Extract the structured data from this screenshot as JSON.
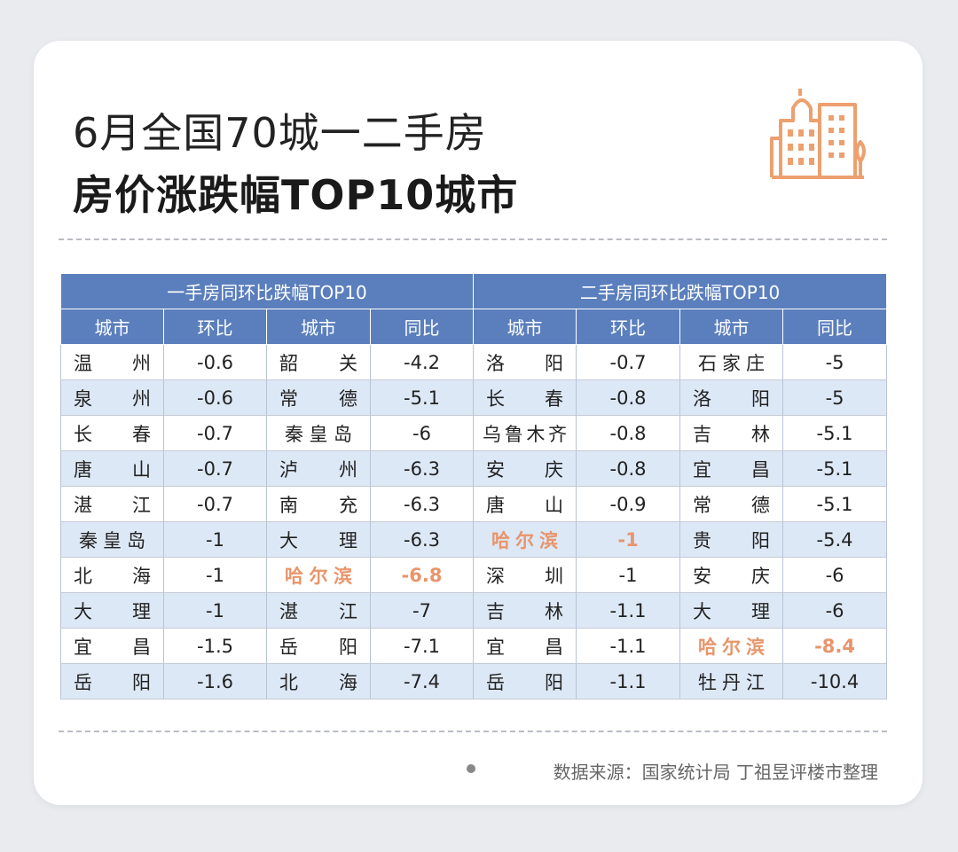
{
  "title_line1": "6月全国70城一二手房",
  "title_line2": "房价涨跌幅TOP10城市",
  "logo_icon": "buildings-icon",
  "accent_color": "#e8956b",
  "header_color": "#5b7fbd",
  "group_headers": [
    "一手房同环比跌幅TOP10",
    "二手房同环比跌幅TOP10"
  ],
  "column_headers": [
    "城市",
    "环比",
    "城市",
    "同比",
    "城市",
    "环比",
    "城市",
    "同比"
  ],
  "rows": [
    [
      "温州",
      "-0.6",
      "韶关",
      "-4.2",
      "洛阳",
      "-0.7",
      "石家庄",
      "-5"
    ],
    [
      "泉州",
      "-0.6",
      "常德",
      "-5.1",
      "长春",
      "-0.8",
      "洛阳",
      "-5"
    ],
    [
      "长春",
      "-0.7",
      "秦皇岛",
      "-6",
      "乌鲁木齐",
      "-0.8",
      "吉林",
      "-5.1"
    ],
    [
      "唐山",
      "-0.7",
      "泸州",
      "-6.3",
      "安庆",
      "-0.8",
      "宜昌",
      "-5.1"
    ],
    [
      "湛江",
      "-0.7",
      "南充",
      "-6.3",
      "唐山",
      "-0.9",
      "常德",
      "-5.1"
    ],
    [
      "秦皇岛",
      "-1",
      "大理",
      "-6.3",
      "哈尔滨",
      "-1",
      "贵阳",
      "-5.4"
    ],
    [
      "北海",
      "-1",
      "哈尔滨",
      "-6.8",
      "深圳",
      "-1",
      "安庆",
      "-6"
    ],
    [
      "大理",
      "-1",
      "湛江",
      "-7",
      "吉林",
      "-1.1",
      "大理",
      "-6"
    ],
    [
      "宜昌",
      "-1.5",
      "岳阳",
      "-7.1",
      "宜昌",
      "-1.1",
      "哈尔滨",
      "-8.4"
    ],
    [
      "岳阳",
      "-1.6",
      "北海",
      "-7.4",
      "岳阳",
      "-1.1",
      "牡丹江",
      "-10.4"
    ]
  ],
  "highlight_city": "哈尔滨",
  "source": "数据来源：国家统计局 丁祖昱评楼市整理"
}
